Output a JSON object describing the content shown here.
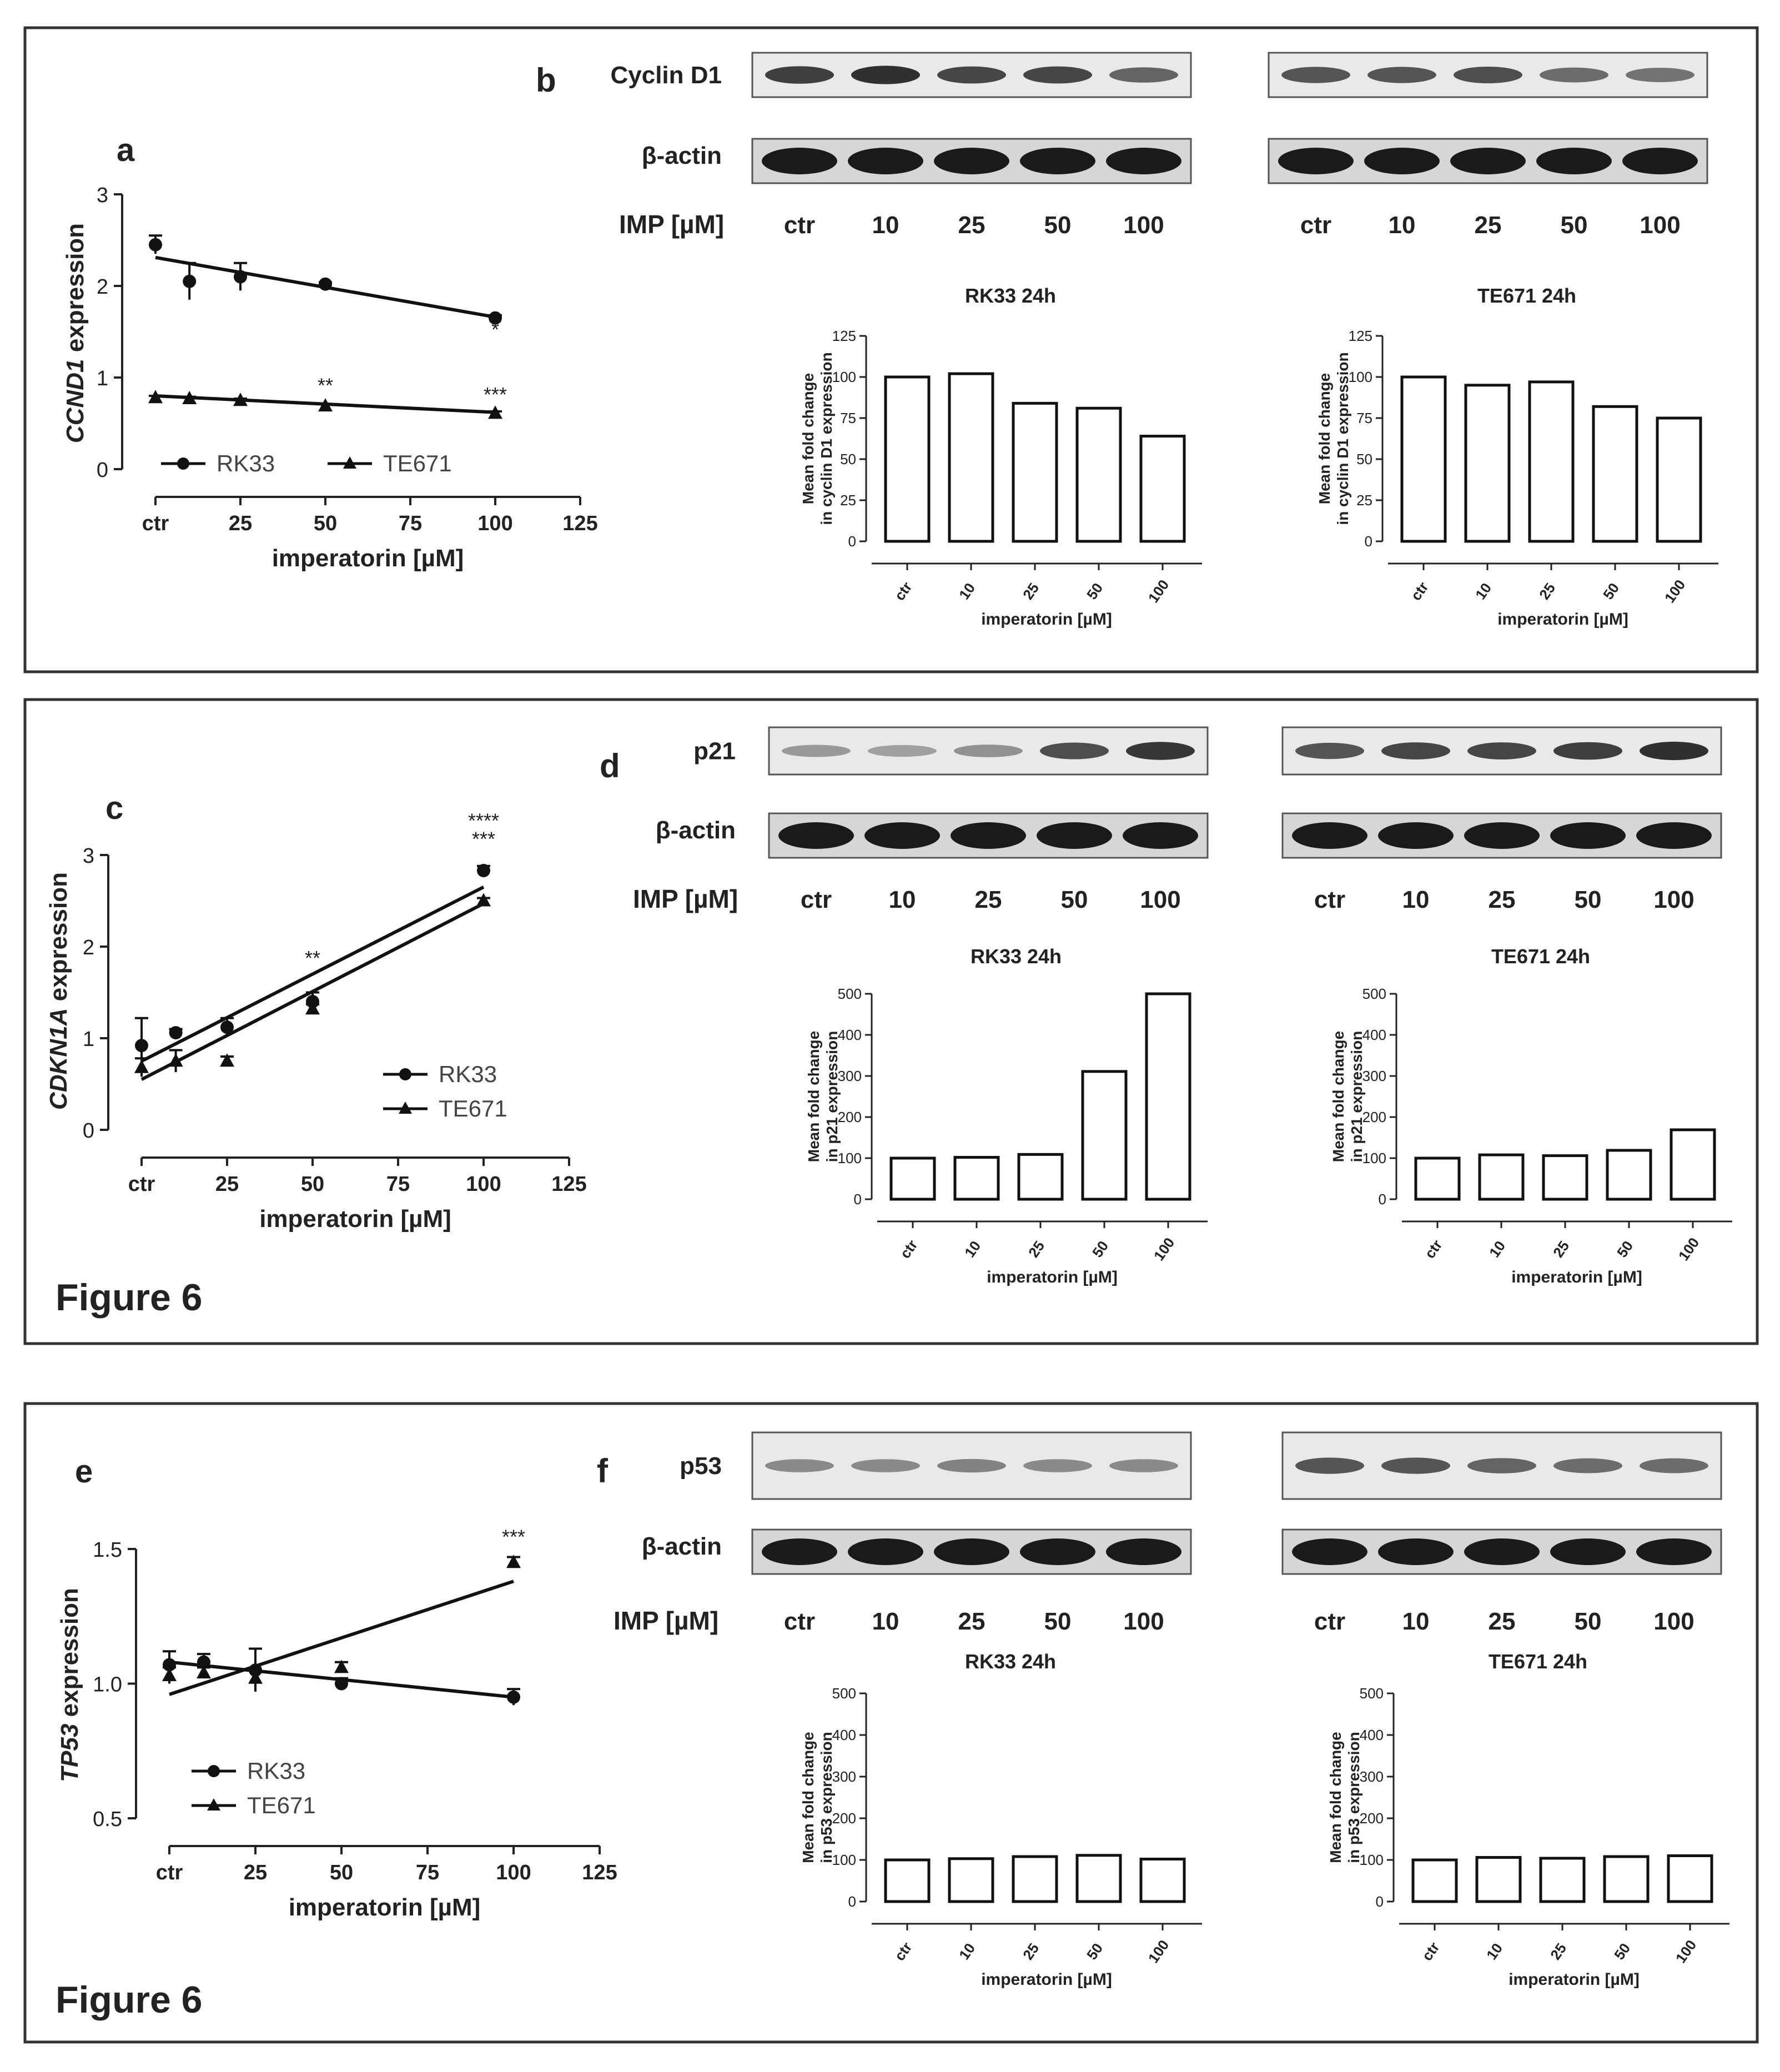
{
  "figure_label": "Figure 6",
  "rows": [
    {
      "lineplot": {
        "letter": "a",
        "gene": "CCND1",
        "ylabel_suffix": " expression",
        "xlabel": "imperatorin [µM]",
        "xticks": [
          "ctr",
          "25",
          "50",
          "75",
          "100",
          "125"
        ],
        "yticks": [
          "0",
          "1",
          "2",
          "3"
        ],
        "ylim": [
          0,
          3
        ],
        "xlim": [
          0,
          125
        ],
        "stars": [
          {
            "x": 100,
            "y": 1.45,
            "text": "*"
          },
          {
            "x": 50,
            "y": 0.84,
            "text": "**"
          },
          {
            "x": 100,
            "y": 0.74,
            "text": "***"
          }
        ]
      },
      "blot": {
        "letter": "b",
        "protein": "Cyclin D1",
        "loading": "β-actin",
        "dose_label": "IMP [µM]",
        "lanes": [
          "ctr",
          "10",
          "25",
          "50",
          "100"
        ],
        "left_intensity": [
          0.85,
          0.95,
          0.8,
          0.8,
          0.6
        ],
        "right_intensity": [
          0.7,
          0.7,
          0.75,
          0.55,
          0.5
        ]
      },
      "bars": {
        "ylabel1": "Mean fold change",
        "ylabel2": "in cyclin D1 expression",
        "xlabel": "imperatorin [µM]",
        "yticks": [
          "0",
          "25",
          "50",
          "75",
          "100",
          "125"
        ],
        "ymax": 125
      }
    },
    {
      "lineplot": {
        "letter": "c",
        "gene": "CDKN1A",
        "ylabel_suffix": " expression",
        "xlabel": "imperatorin [µM]",
        "xticks": [
          "ctr",
          "25",
          "50",
          "75",
          "100",
          "125"
        ],
        "yticks": [
          "0",
          "1",
          "2",
          "3"
        ],
        "ylim": [
          0,
          3
        ],
        "xlim": [
          0,
          125
        ],
        "stars": [
          {
            "x": 100,
            "y": 3.3,
            "text": "****"
          },
          {
            "x": 100,
            "y": 3.1,
            "text": "***"
          },
          {
            "x": 50,
            "y": 1.8,
            "text": "**"
          }
        ]
      },
      "blot": {
        "letter": "d",
        "protein": "p21",
        "loading": "β-actin",
        "dose_label": "IMP [µM]",
        "lanes": [
          "ctr",
          "10",
          "25",
          "50",
          "100"
        ],
        "left_intensity": [
          0.25,
          0.2,
          0.3,
          0.75,
          0.9
        ],
        "right_intensity": [
          0.7,
          0.8,
          0.8,
          0.85,
          0.95
        ]
      },
      "bars": {
        "ylabel1": "Mean fold change",
        "ylabel2": "in p21 expression",
        "xlabel": "imperatorin [µM]",
        "yticks": [
          "0",
          "100",
          "200",
          "300",
          "400",
          "500"
        ],
        "ymax": 500
      }
    },
    {
      "lineplot": {
        "letter": "e",
        "gene": "TP53",
        "ylabel_suffix": " expression",
        "xlabel": "imperatorin [µM]",
        "xticks": [
          "ctr",
          "25",
          "50",
          "75",
          "100",
          "125"
        ],
        "yticks": [
          "0.5",
          "1.0",
          "1.5"
        ],
        "ylim": [
          0.5,
          1.5
        ],
        "xlim": [
          0,
          125
        ],
        "stars": [
          {
            "x": 100,
            "y": 1.52,
            "text": "***"
          }
        ]
      },
      "blot": {
        "letter": "f",
        "protein": "p53",
        "loading": "β-actin",
        "dose_label": "IMP [µM]",
        "lanes": [
          "ctr",
          "10",
          "25",
          "50",
          "100"
        ],
        "left_intensity": [
          0.35,
          0.35,
          0.4,
          0.35,
          0.35
        ],
        "right_intensity": [
          0.7,
          0.7,
          0.6,
          0.55,
          0.55
        ]
      },
      "bars": {
        "ylabel1": "Mean fold change",
        "ylabel2": "in p53 expression",
        "xlabel": "imperatorin [µM]",
        "yticks": [
          "0",
          "100",
          "200",
          "300",
          "400",
          "500"
        ],
        "ymax": 500
      }
    }
  ],
  "chart_data": [
    {
      "panel": "a",
      "type": "scatter",
      "title": "",
      "xlabel": "imperatorin [µM]",
      "ylabel": "CCND1 expression",
      "xlim": [
        0,
        125
      ],
      "ylim": [
        0,
        3
      ],
      "series": [
        {
          "name": "RK33",
          "marker": "circle",
          "x": [
            0,
            10,
            25,
            50,
            100
          ],
          "y": [
            2.45,
            2.05,
            2.1,
            2.02,
            1.65
          ],
          "err": [
            0.1,
            0.2,
            0.15,
            0.02,
            0.03
          ],
          "fit": [
            2.31,
            1.66
          ]
        },
        {
          "name": "TE671",
          "marker": "triangle",
          "x": [
            0,
            10,
            25,
            50,
            100
          ],
          "y": [
            0.78,
            0.77,
            0.75,
            0.69,
            0.61
          ],
          "err": [
            0.02,
            0.02,
            0.02,
            0.02,
            0.02
          ],
          "fit": [
            0.8,
            0.62
          ]
        }
      ]
    },
    {
      "panel": "b-left",
      "type": "bar",
      "title": "RK33 24h",
      "categories": [
        "ctr",
        "10",
        "25",
        "50",
        "100"
      ],
      "values": [
        100,
        102,
        84,
        81,
        64
      ],
      "xlabel": "imperatorin [µM]",
      "ylabel": "Mean fold change in cyclin D1 expression",
      "ylim": [
        0,
        125
      ]
    },
    {
      "panel": "b-right",
      "type": "bar",
      "title": "TE671 24h",
      "categories": [
        "ctr",
        "10",
        "25",
        "50",
        "100"
      ],
      "values": [
        100,
        95,
        97,
        82,
        75
      ],
      "xlabel": "imperatorin [µM]",
      "ylabel": "Mean fold change in cyclin D1 expression",
      "ylim": [
        0,
        125
      ]
    },
    {
      "panel": "c",
      "type": "scatter",
      "title": "",
      "xlabel": "imperatorin [µM]",
      "ylabel": "CDKN1A expression",
      "xlim": [
        0,
        125
      ],
      "ylim": [
        0,
        3
      ],
      "series": [
        {
          "name": "RK33",
          "marker": "circle",
          "x": [
            0,
            10,
            25,
            50,
            100
          ],
          "y": [
            0.92,
            1.06,
            1.12,
            1.4,
            2.83
          ],
          "err": [
            0.3,
            0.04,
            0.1,
            0.1,
            0.05
          ],
          "fit": [
            0.75,
            2.65
          ]
        },
        {
          "name": "TE671",
          "marker": "triangle",
          "x": [
            0,
            10,
            25,
            50,
            100
          ],
          "y": [
            0.68,
            0.75,
            0.75,
            1.32,
            2.5
          ],
          "err": [
            0.1,
            0.12,
            0.05,
            0.05,
            0.03
          ],
          "fit": [
            0.55,
            2.47
          ]
        }
      ]
    },
    {
      "panel": "d-left",
      "type": "bar",
      "title": "RK33 24h",
      "categories": [
        "ctr",
        "10",
        "25",
        "50",
        "100"
      ],
      "values": [
        100,
        102,
        109,
        311,
        500
      ],
      "xlabel": "imperatorin [µM]",
      "ylabel": "Mean fold change in p21 expression",
      "ylim": [
        0,
        500
      ]
    },
    {
      "panel": "d-right",
      "type": "bar",
      "title": "TE671 24h",
      "categories": [
        "ctr",
        "10",
        "25",
        "50",
        "100"
      ],
      "values": [
        100,
        108,
        106,
        119,
        169
      ],
      "xlabel": "imperatorin [µM]",
      "ylabel": "Mean fold change in p21 expression",
      "ylim": [
        0,
        500
      ]
    },
    {
      "panel": "e",
      "type": "scatter",
      "title": "",
      "xlabel": "imperatorin [µM]",
      "ylabel": "TP53 expression",
      "xlim": [
        0,
        125
      ],
      "ylim": [
        0.5,
        1.5
      ],
      "series": [
        {
          "name": "RK33",
          "marker": "circle",
          "x": [
            0,
            10,
            25,
            50,
            100
          ],
          "y": [
            1.07,
            1.08,
            1.05,
            1.0,
            0.95
          ],
          "err": [
            0.05,
            0.03,
            0.08,
            0.02,
            0.03
          ],
          "fit": [
            1.08,
            0.95
          ]
        },
        {
          "name": "TE671",
          "marker": "triangle",
          "x": [
            0,
            10,
            25,
            50,
            100
          ],
          "y": [
            1.03,
            1.04,
            1.02,
            1.06,
            1.45
          ],
          "err": [
            0.03,
            0.02,
            0.03,
            0.02,
            0.02
          ],
          "fit": [
            0.96,
            1.38
          ]
        }
      ]
    },
    {
      "panel": "f-left",
      "type": "bar",
      "title": "RK33 24h",
      "categories": [
        "ctr",
        "10",
        "25",
        "50",
        "100"
      ],
      "values": [
        100,
        103,
        108,
        111,
        102
      ],
      "xlabel": "imperatorin [µM]",
      "ylabel": "Mean fold change in p53 expression",
      "ylim": [
        0,
        500
      ]
    },
    {
      "panel": "f-right",
      "type": "bar",
      "title": "TE671 24h",
      "categories": [
        "ctr",
        "10",
        "25",
        "50",
        "100"
      ],
      "values": [
        100,
        106,
        104,
        108,
        110
      ],
      "xlabel": "imperatorin [µM]",
      "ylabel": "Mean fold change in p53 expression",
      "ylim": [
        0,
        500
      ]
    }
  ]
}
